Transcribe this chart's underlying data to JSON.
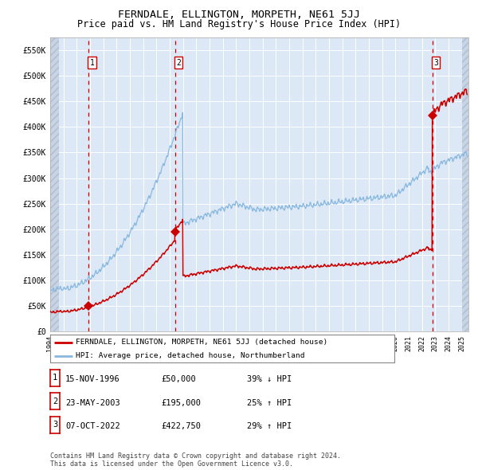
{
  "title": "FERNDALE, ELLINGTON, MORPETH, NE61 5JJ",
  "subtitle": "Price paid vs. HM Land Registry's House Price Index (HPI)",
  "title_fontsize": 9.5,
  "subtitle_fontsize": 8.5,
  "yticks": [
    0,
    50000,
    100000,
    150000,
    200000,
    250000,
    300000,
    350000,
    400000,
    450000,
    500000,
    550000
  ],
  "ytick_labels": [
    "£0",
    "£50K",
    "£100K",
    "£150K",
    "£200K",
    "£250K",
    "£300K",
    "£350K",
    "£400K",
    "£450K",
    "£500K",
    "£550K"
  ],
  "xmin": 1994.0,
  "xmax": 2025.5,
  "ymin": 0,
  "ymax": 575000,
  "plot_bg_color": "#dce8f5",
  "grid_color": "#ffffff",
  "red_line_color": "#cc0000",
  "blue_line_color": "#88b8e0",
  "vline_color": "#cc0000",
  "marker_color": "#cc0000",
  "purchases": [
    {
      "date_year": 1996.875,
      "price": 50000,
      "label": "1"
    },
    {
      "date_year": 2003.39,
      "price": 195000,
      "label": "2"
    },
    {
      "date_year": 2022.77,
      "price": 422750,
      "label": "3"
    }
  ],
  "legend_label_red": "FERNDALE, ELLINGTON, MORPETH, NE61 5JJ (detached house)",
  "legend_label_blue": "HPI: Average price, detached house, Northumberland",
  "table_rows": [
    {
      "num": "1",
      "date": "15-NOV-1996",
      "price": "£50,000",
      "change": "39% ↓ HPI"
    },
    {
      "num": "2",
      "date": "23-MAY-2003",
      "price": "£195,000",
      "change": "25% ↑ HPI"
    },
    {
      "num": "3",
      "date": "07-OCT-2022",
      "price": "£422,750",
      "change": "29% ↑ HPI"
    }
  ],
  "footnote": "Contains HM Land Registry data © Crown copyright and database right 2024.\nThis data is licensed under the Open Government Licence v3.0.",
  "font_family": "DejaVu Sans Mono"
}
